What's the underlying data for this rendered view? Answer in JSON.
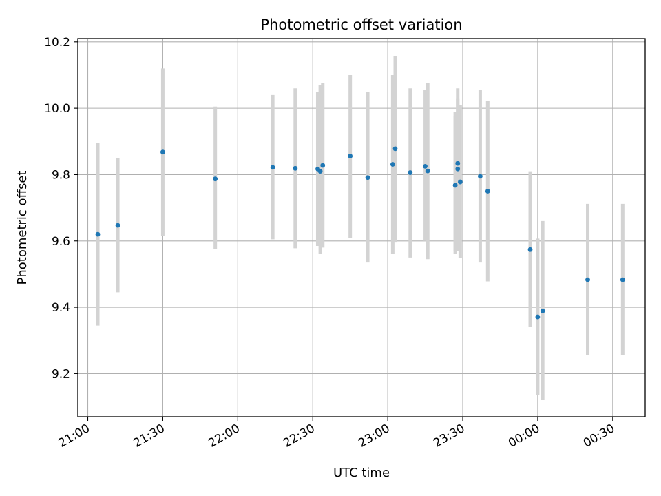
{
  "chart_data": {
    "type": "scatter",
    "title": "Photometric offset variation",
    "xlabel": "UTC time",
    "ylabel": "Photometric offset",
    "x_unit": "UTC",
    "xlim": [
      "20:56",
      "00:43"
    ],
    "ylim": [
      9.07,
      10.21
    ],
    "x_ticks": [
      "21:00",
      "21:30",
      "22:00",
      "22:30",
      "23:00",
      "23:30",
      "00:00",
      "00:30"
    ],
    "y_ticks": [
      "9.2",
      "9.4",
      "9.6",
      "9.8",
      "10.0",
      "10.2"
    ],
    "grid": true,
    "legend": "none",
    "marker_color": "#1f77b4",
    "errorbar_color": "#d3d3d3",
    "points": [
      {
        "t": "21:04",
        "y": 9.62,
        "err_low": 9.345,
        "err_high": 9.895
      },
      {
        "t": "21:12",
        "y": 9.647,
        "err_low": 9.445,
        "err_high": 9.85
      },
      {
        "t": "21:30",
        "y": 9.868,
        "err_low": 9.615,
        "err_high": 10.12
      },
      {
        "t": "21:51",
        "y": 9.787,
        "err_low": 9.575,
        "err_high": 10.005
      },
      {
        "t": "22:14",
        "y": 9.822,
        "err_low": 9.605,
        "err_high": 10.04
      },
      {
        "t": "22:23",
        "y": 9.819,
        "err_low": 9.578,
        "err_high": 10.06
      },
      {
        "t": "22:32",
        "y": 9.817,
        "err_low": 9.585,
        "err_high": 10.05
      },
      {
        "t": "22:33",
        "y": 9.81,
        "err_low": 9.56,
        "err_high": 10.07
      },
      {
        "t": "22:34",
        "y": 9.828,
        "err_low": 9.58,
        "err_high": 10.075
      },
      {
        "t": "22:45",
        "y": 9.856,
        "err_low": 9.61,
        "err_high": 10.1
      },
      {
        "t": "22:52",
        "y": 9.791,
        "err_low": 9.535,
        "err_high": 10.05
      },
      {
        "t": "23:02",
        "y": 9.831,
        "err_low": 9.56,
        "err_high": 10.1
      },
      {
        "t": "23:03",
        "y": 9.878,
        "err_low": 9.595,
        "err_high": 10.158
      },
      {
        "t": "23:09",
        "y": 9.806,
        "err_low": 9.55,
        "err_high": 10.06
      },
      {
        "t": "23:15",
        "y": 9.825,
        "err_low": 9.6,
        "err_high": 10.055
      },
      {
        "t": "23:16",
        "y": 9.811,
        "err_low": 9.545,
        "err_high": 10.077
      },
      {
        "t": "23:27",
        "y": 9.768,
        "err_low": 9.56,
        "err_high": 9.978
      },
      {
        "t": "23:27",
        "y": 9.768,
        "err_low": 9.57,
        "err_high": 9.99
      },
      {
        "t": "23:28",
        "y": 9.817,
        "err_low": 9.57,
        "err_high": 10.03
      },
      {
        "t": "23:28",
        "y": 9.834,
        "err_low": 9.58,
        "err_high": 10.06
      },
      {
        "t": "23:29",
        "y": 9.778,
        "err_low": 9.548,
        "err_high": 10.01
      },
      {
        "t": "23:37",
        "y": 9.795,
        "err_low": 9.535,
        "err_high": 10.055
      },
      {
        "t": "23:40",
        "y": 9.75,
        "err_low": 9.478,
        "err_high": 10.022
      },
      {
        "t": "23:57",
        "y": 9.574,
        "err_low": 9.34,
        "err_high": 9.81
      },
      {
        "t": "00:00",
        "y": 9.371,
        "err_low": 9.135,
        "err_high": 9.607
      },
      {
        "t": "00:02",
        "y": 9.389,
        "err_low": 9.12,
        "err_high": 9.66
      },
      {
        "t": "00:20",
        "y": 9.483,
        "err_low": 9.255,
        "err_high": 9.712
      },
      {
        "t": "00:34",
        "y": 9.483,
        "err_low": 9.255,
        "err_high": 9.712
      }
    ]
  }
}
